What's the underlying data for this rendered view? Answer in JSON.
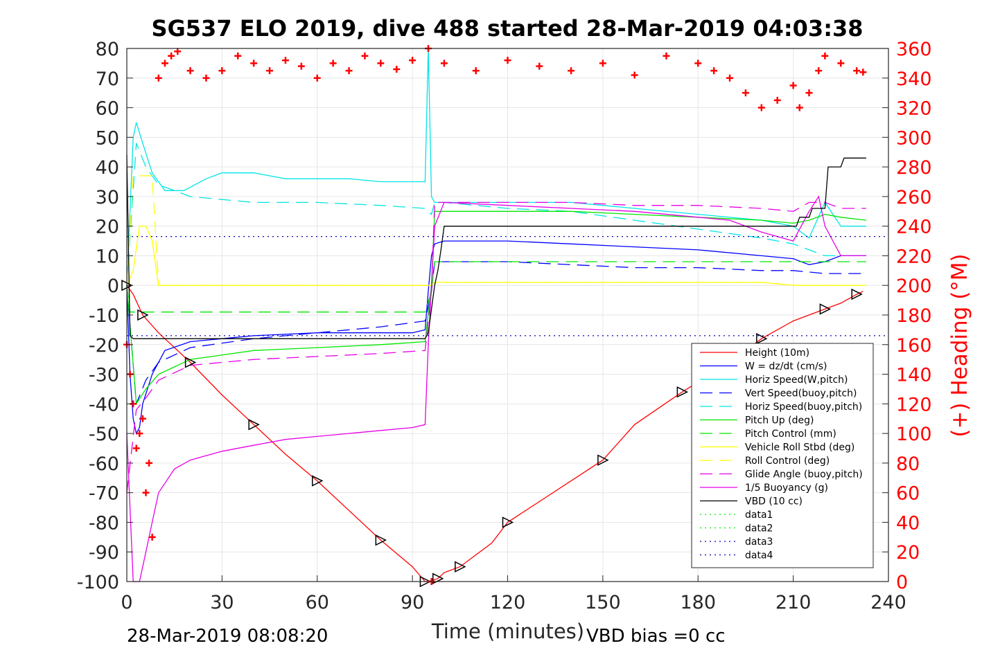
{
  "chart_data": {
    "type": "line",
    "title": "SG537 ELO 2019, dive 488 started 28-Mar-2019 04:03:38",
    "xlabel": "Time (minutes)",
    "ylabel_right": "(+) Heading (°M)",
    "xlim": [
      0,
      240
    ],
    "ylim": [
      -100,
      80
    ],
    "ylim_right": [
      0,
      360
    ],
    "x_ticks": [
      "0",
      "30",
      "60",
      "90",
      "120",
      "150",
      "180",
      "210",
      "240"
    ],
    "y_ticks": [
      "80",
      "70",
      "60",
      "50",
      "40",
      "30",
      "20",
      "10",
      "0",
      "-10",
      "-20",
      "-30",
      "-40",
      "-50",
      "-60",
      "-70",
      "-80",
      "-90",
      "-100"
    ],
    "y_right_ticks": [
      "360",
      "340",
      "320",
      "300",
      "280",
      "260",
      "240",
      "220",
      "200",
      "180",
      "160",
      "140",
      "120",
      "100",
      "80",
      "60",
      "40",
      "20",
      "0"
    ],
    "grid": true,
    "legend_position": "bottom-right",
    "footer_left": "28-Mar-2019 08:08:20",
    "footer_right": "VBD bias =0 cc",
    "series": [
      {
        "name": "Height (10m)",
        "color": "#ff0000",
        "style": "solid",
        "x": [
          0,
          2,
          5,
          10,
          20,
          30,
          40,
          50,
          60,
          70,
          80,
          90,
          94,
          95,
          98,
          100,
          105,
          115,
          120,
          130,
          150,
          160,
          175,
          190,
          200,
          210,
          220,
          225,
          230,
          232
        ],
        "y": [
          0,
          -3,
          -10,
          -16,
          -26,
          -37,
          -47,
          -57,
          -66,
          -76,
          -86,
          -95,
          -100,
          -100,
          -99,
          -97,
          -95,
          -87,
          -80,
          -73,
          -59,
          -47,
          -36,
          -26,
          -18,
          -12,
          -8,
          -6,
          -3,
          -2
        ]
      },
      {
        "name": "W = dz/dt (cm/s)",
        "color": "#0000ff",
        "style": "solid",
        "x": [
          0,
          1,
          2,
          3,
          4,
          5,
          8,
          12,
          20,
          30,
          40,
          60,
          80,
          90,
          94,
          95,
          96,
          97,
          100,
          120,
          140,
          160,
          180,
          200,
          210,
          215,
          220,
          225,
          230,
          233
        ],
        "y": [
          0,
          -30,
          -45,
          -50,
          -48,
          -40,
          -30,
          -22,
          -19,
          -18,
          -17,
          -16,
          -16,
          -16,
          -15,
          -2,
          10,
          14,
          15,
          15,
          14,
          13,
          12,
          10,
          9,
          7,
          8,
          10,
          10,
          10
        ]
      },
      {
        "name": "Horiz Speed(W,pitch)",
        "color": "#00e5e5",
        "style": "solid",
        "x": [
          0,
          2,
          3,
          5,
          8,
          12,
          18,
          25,
          30,
          40,
          50,
          60,
          70,
          80,
          90,
          94,
          95,
          96,
          97,
          100,
          120,
          140,
          160,
          180,
          200,
          210,
          215,
          220,
          225,
          233
        ],
        "y": [
          0,
          50,
          55,
          48,
          38,
          32,
          32,
          36,
          38,
          38,
          36,
          36,
          36,
          35,
          35,
          35,
          80,
          30,
          28,
          28,
          28,
          28,
          26,
          24,
          22,
          20,
          16,
          28,
          20,
          20
        ]
      },
      {
        "name": "Vert Speed(buoy,pitch)",
        "color": "#0000ff",
        "style": "dashed",
        "x": [
          0,
          3,
          6,
          10,
          20,
          40,
          60,
          80,
          94,
          96,
          97,
          100,
          120,
          140,
          160,
          180,
          200,
          210,
          220,
          233
        ],
        "y": [
          0,
          -40,
          -32,
          -26,
          -21,
          -18,
          -16,
          -14,
          -12,
          -2,
          8,
          8,
          8,
          7,
          6,
          6,
          5,
          5,
          4,
          4
        ]
      },
      {
        "name": "Horiz Speed(buoy,pitch)",
        "color": "#00e5e5",
        "style": "dashed",
        "x": [
          0,
          3,
          6,
          10,
          20,
          40,
          60,
          80,
          94,
          96,
          97,
          100,
          120,
          140,
          160,
          180,
          200,
          210,
          220,
          233
        ],
        "y": [
          0,
          48,
          40,
          34,
          30,
          28,
          28,
          27,
          26,
          24,
          28,
          28,
          26,
          25,
          22,
          19,
          16,
          14,
          10,
          10
        ]
      },
      {
        "name": "Pitch Up (deg)",
        "color": "#00e600",
        "style": "solid",
        "x": [
          0,
          3,
          6,
          10,
          20,
          40,
          60,
          80,
          94,
          96,
          97,
          100,
          120,
          140,
          160,
          180,
          200,
          210,
          215,
          220,
          225,
          233
        ],
        "y": [
          0,
          -40,
          -35,
          -30,
          -25,
          -22,
          -21,
          -20,
          -19,
          0,
          25,
          25,
          25,
          25,
          24,
          23,
          22,
          21,
          22,
          24,
          23,
          22
        ]
      },
      {
        "name": "Pitch Control (mm)",
        "color": "#00e600",
        "style": "dashed",
        "x": [
          0,
          1,
          5,
          10,
          20,
          40,
          60,
          80,
          94,
          96,
          97,
          100,
          120,
          140,
          160,
          180,
          200,
          210,
          220,
          233
        ],
        "y": [
          0,
          -9,
          -9,
          -9,
          -9,
          -9,
          -9,
          -9,
          -9,
          -2,
          8,
          8,
          8,
          8,
          8,
          8,
          8,
          8,
          8,
          8
        ]
      },
      {
        "name": "Vehicle Roll Stbd (deg)",
        "color": "#ffff00",
        "style": "solid",
        "x": [
          0,
          2,
          4,
          6,
          8,
          10,
          20,
          40,
          60,
          80,
          94,
          96,
          97,
          100,
          120,
          140,
          160,
          180,
          200,
          210,
          220,
          233
        ],
        "y": [
          0,
          5,
          20,
          20,
          15,
          0,
          0,
          0,
          0,
          0,
          0,
          0,
          1,
          1,
          1,
          1,
          1,
          1,
          1,
          0,
          0,
          0
        ]
      },
      {
        "name": "Roll Control (deg)",
        "color": "#ffff00",
        "style": "dashed",
        "x": [
          0,
          2,
          8,
          10,
          20,
          40,
          60,
          80,
          94,
          96,
          97,
          100,
          120,
          140,
          160,
          180,
          200,
          210,
          220,
          233
        ],
        "y": [
          0,
          37,
          37,
          0,
          0,
          0,
          0,
          0,
          0,
          0,
          1,
          1,
          1,
          1,
          1,
          1,
          1,
          0,
          0,
          0
        ]
      },
      {
        "name": "Glide Angle (buoy,pitch)",
        "color": "#e600e6",
        "style": "dashed",
        "x": [
          0,
          3,
          6,
          10,
          20,
          40,
          60,
          80,
          94,
          96,
          97,
          100,
          120,
          140,
          160,
          180,
          200,
          210,
          215,
          220,
          225,
          233
        ],
        "y": [
          -70,
          -42,
          -38,
          -32,
          -27,
          -25,
          -24,
          -23,
          -22,
          -2,
          28,
          28,
          28,
          28,
          27,
          27,
          26,
          25,
          28,
          28,
          26,
          26
        ]
      },
      {
        "name": "1/5 Buoyancy (g)",
        "color": "#e600e6",
        "style": "solid",
        "x": [
          0,
          2,
          3,
          4,
          6,
          8,
          10,
          15,
          20,
          30,
          40,
          50,
          60,
          70,
          80,
          90,
          94,
          95,
          97,
          100,
          120,
          140,
          160,
          180,
          190,
          200,
          210,
          215,
          218,
          220,
          225,
          233
        ],
        "y": [
          -50,
          -100,
          -100,
          -100,
          -90,
          -80,
          -70,
          -62,
          -59,
          -56,
          -54,
          -52,
          -51,
          -50,
          -49,
          -48,
          -47,
          -20,
          20,
          28,
          27,
          26,
          25,
          23,
          22,
          18,
          15,
          25,
          30,
          20,
          10,
          10
        ]
      },
      {
        "name": "VBD (10 cc)",
        "color": "#000000",
        "style": "solid",
        "x": [
          0,
          1,
          2,
          3,
          93,
          94,
          95,
          96,
          97,
          98,
          99,
          100,
          210,
          211,
          212,
          215,
          216,
          220,
          221,
          225,
          226,
          233
        ],
        "y": [
          44,
          -17,
          -18,
          -18,
          -18,
          -18,
          -16,
          -8,
          0,
          5,
          12,
          20,
          20,
          20,
          23,
          23,
          26,
          26,
          40,
          40,
          43,
          43
        ]
      },
      {
        "name": "data1",
        "color": "#00e600",
        "style": "dotted",
        "x": [],
        "y": []
      },
      {
        "name": "data2",
        "color": "#00e600",
        "style": "dotted",
        "x": [],
        "y": []
      },
      {
        "name": "data3",
        "color": "#0000aa",
        "style": "dotted",
        "x": [
          0,
          240
        ],
        "y": [
          16.5,
          16.5
        ]
      },
      {
        "name": "data4",
        "color": "#0000aa",
        "style": "dotted",
        "x": [
          0,
          240
        ],
        "y": [
          -17,
          -17
        ]
      }
    ],
    "heading": {
      "name": "(+) Heading (°M)",
      "color": "#ff0000",
      "marker": "+",
      "x": [
        0,
        1,
        2,
        3,
        4,
        5,
        6,
        7,
        8,
        10,
        12,
        14,
        16,
        20,
        25,
        30,
        35,
        40,
        45,
        50,
        55,
        60,
        65,
        70,
        75,
        80,
        85,
        90,
        95,
        96,
        100,
        110,
        120,
        130,
        140,
        150,
        160,
        170,
        180,
        185,
        190,
        195,
        200,
        205,
        210,
        212,
        215,
        218,
        220,
        225,
        230,
        232
      ],
      "y": [
        160,
        140,
        120,
        90,
        100,
        110,
        60,
        80,
        30,
        340,
        350,
        355,
        358,
        345,
        340,
        345,
        355,
        350,
        345,
        352,
        348,
        340,
        350,
        345,
        355,
        350,
        346,
        352,
        360,
        0,
        350,
        345,
        352,
        348,
        345,
        350,
        342,
        355,
        350,
        345,
        340,
        330,
        320,
        325,
        335,
        320,
        330,
        345,
        355,
        350,
        345,
        344
      ]
    }
  }
}
